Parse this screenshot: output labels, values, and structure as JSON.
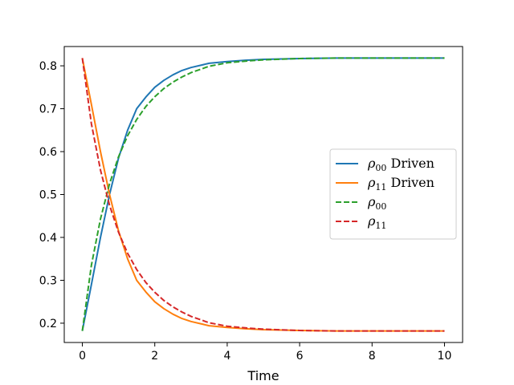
{
  "chart_data": {
    "type": "line",
    "title": "",
    "xlabel": "Time",
    "ylabel": "",
    "xlim": [
      -0.5,
      10.5
    ],
    "ylim": [
      0.155,
      0.845
    ],
    "xticks": [
      0,
      2,
      4,
      6,
      8,
      10
    ],
    "yticks": [
      0.2,
      0.3,
      0.4,
      0.5,
      0.6,
      0.7,
      0.8
    ],
    "xtick_labels": [
      "0",
      "2",
      "4",
      "6",
      "8",
      "10"
    ],
    "ytick_labels": [
      "0.2",
      "0.3",
      "0.4",
      "0.5",
      "0.6",
      "0.7",
      "0.8"
    ],
    "grid": false,
    "legend_position": "center-right",
    "x": [
      0,
      0.25,
      0.5,
      0.75,
      1.0,
      1.25,
      1.5,
      1.75,
      2.0,
      2.25,
      2.5,
      2.75,
      3.0,
      3.5,
      4.0,
      4.5,
      5.0,
      6.0,
      7.0,
      8.0,
      9.0,
      10.0
    ],
    "series": [
      {
        "name": "ρ00 Driven",
        "label_main": "ρ",
        "label_sub": "00",
        "label_suffix": " Driven",
        "color": "#1f77b4",
        "dash": "solid",
        "values": [
          0.182,
          0.29,
          0.4,
          0.5,
          0.585,
          0.65,
          0.7,
          0.727,
          0.75,
          0.766,
          0.779,
          0.789,
          0.796,
          0.806,
          0.81,
          0.813,
          0.815,
          0.817,
          0.818,
          0.818,
          0.818,
          0.818
        ]
      },
      {
        "name": "ρ11 Driven",
        "label_main": "ρ",
        "label_sub": "11",
        "label_suffix": " Driven",
        "color": "#ff7f0e",
        "dash": "solid",
        "values": [
          0.818,
          0.71,
          0.6,
          0.5,
          0.415,
          0.35,
          0.3,
          0.273,
          0.25,
          0.234,
          0.221,
          0.211,
          0.204,
          0.194,
          0.19,
          0.187,
          0.185,
          0.183,
          0.182,
          0.182,
          0.182,
          0.182
        ]
      },
      {
        "name": "ρ00",
        "label_main": "ρ",
        "label_sub": "00",
        "label_suffix": "",
        "color": "#2ca02c",
        "dash": "dashed",
        "values": [
          0.182,
          0.335,
          0.443,
          0.525,
          0.588,
          0.637,
          0.675,
          0.705,
          0.728,
          0.747,
          0.762,
          0.774,
          0.784,
          0.799,
          0.807,
          0.811,
          0.814,
          0.817,
          0.818,
          0.818,
          0.818,
          0.818
        ]
      },
      {
        "name": "ρ11",
        "label_main": "ρ",
        "label_sub": "11",
        "label_suffix": "",
        "color": "#d62728",
        "dash": "dashed",
        "values": [
          0.818,
          0.665,
          0.557,
          0.475,
          0.412,
          0.363,
          0.325,
          0.295,
          0.272,
          0.253,
          0.238,
          0.226,
          0.216,
          0.201,
          0.193,
          0.189,
          0.186,
          0.183,
          0.182,
          0.182,
          0.182,
          0.182
        ]
      }
    ]
  }
}
